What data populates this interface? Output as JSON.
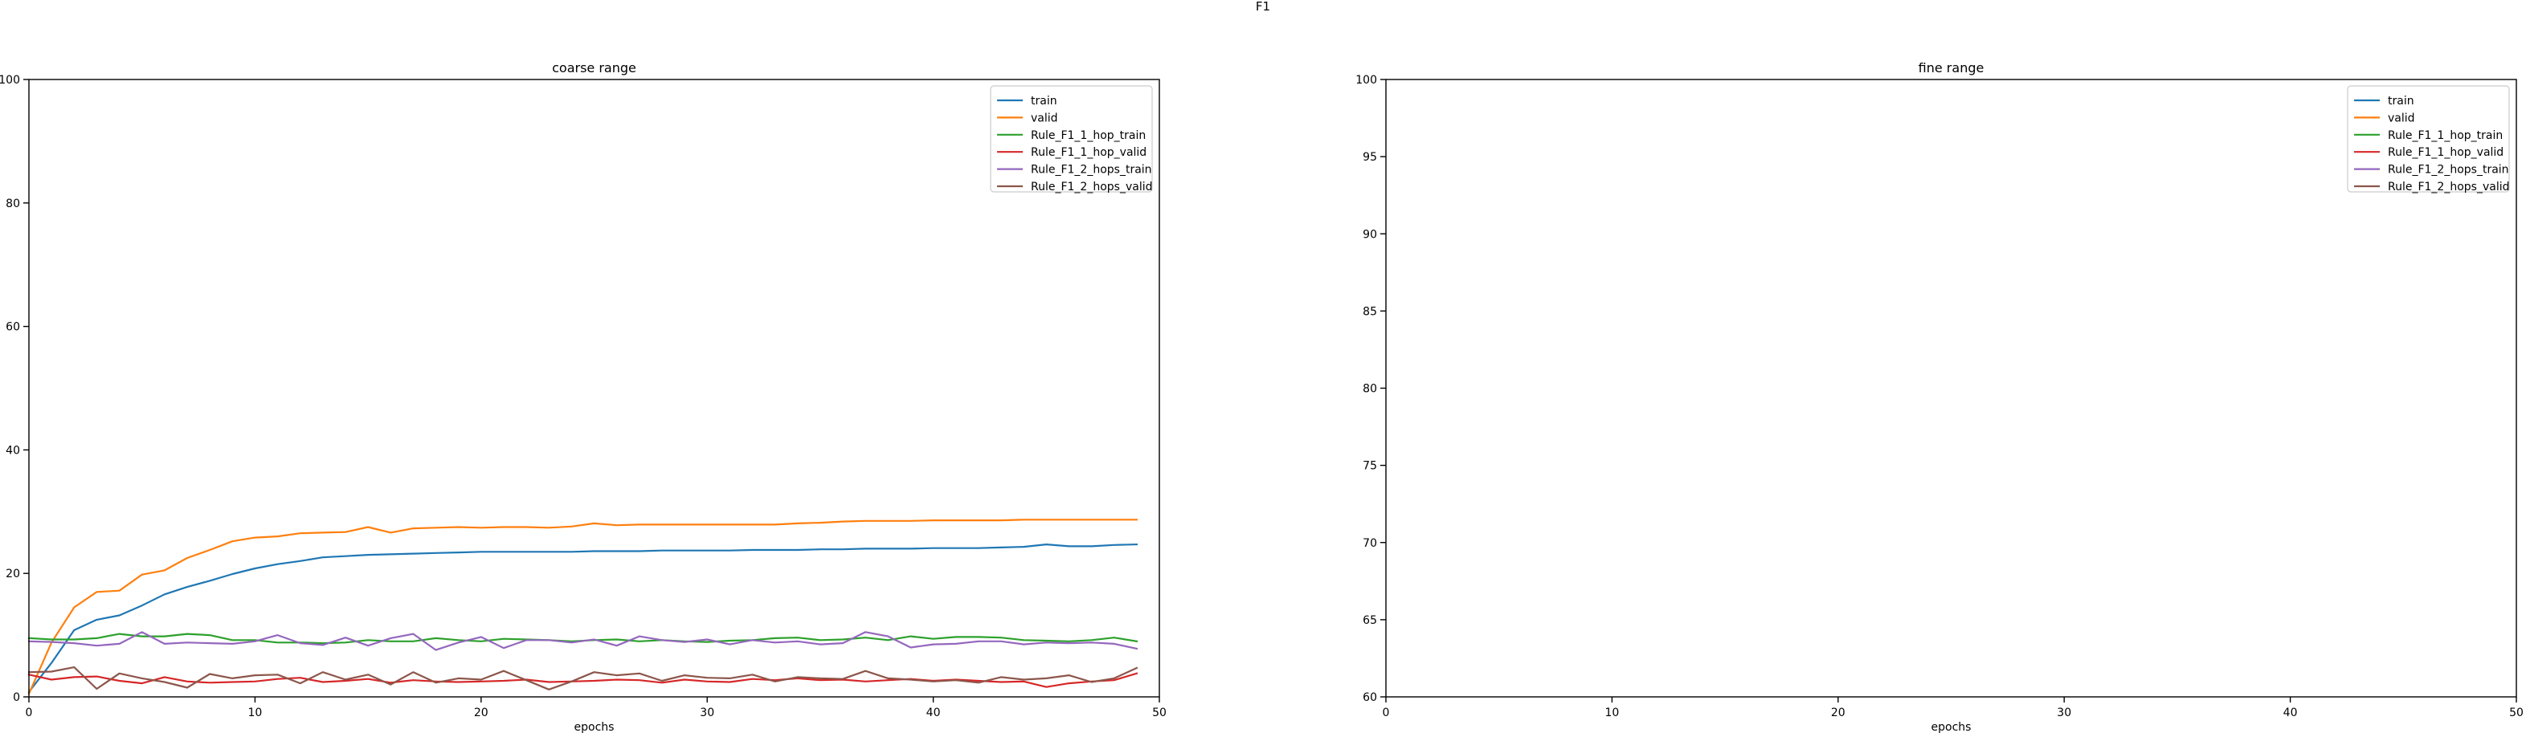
{
  "suptitle": "F1",
  "colors": {
    "train": "#1f77b4",
    "valid": "#ff7f0e",
    "Rule_F1_1_hop_train": "#2ca02c",
    "Rule_F1_1_hop_valid": "#d62728",
    "Rule_F1_2_hops_train": "#9467bd",
    "Rule_F1_2_hops_valid": "#8c564b"
  },
  "chart_data": [
    {
      "type": "line",
      "title": "coarse range",
      "xlabel": "epochs",
      "ylabel": "",
      "xlim": [
        0,
        50
      ],
      "ylim": [
        0,
        100
      ],
      "xticks": [
        0,
        10,
        20,
        30,
        40,
        50
      ],
      "yticks": [
        0,
        20,
        40,
        60,
        80,
        100
      ],
      "grid": false,
      "legend_position": "top-right",
      "x": [
        0,
        1,
        2,
        3,
        4,
        5,
        6,
        7,
        8,
        9,
        10,
        11,
        12,
        13,
        14,
        15,
        16,
        17,
        18,
        19,
        20,
        21,
        22,
        23,
        24,
        25,
        26,
        27,
        28,
        29,
        30,
        31,
        32,
        33,
        34,
        35,
        36,
        37,
        38,
        39,
        40,
        41,
        42,
        43,
        44,
        45,
        46,
        47,
        48,
        49
      ],
      "series": [
        {
          "name": "train",
          "values": [
            0.8,
            5.5,
            10.8,
            12.5,
            13.2,
            14.8,
            16.6,
            17.8,
            18.8,
            19.9,
            20.8,
            21.5,
            22.0,
            22.6,
            22.8,
            23.0,
            23.1,
            23.2,
            23.3,
            23.4,
            23.5,
            23.5,
            23.5,
            23.5,
            23.5,
            23.6,
            23.6,
            23.6,
            23.7,
            23.7,
            23.7,
            23.7,
            23.8,
            23.8,
            23.8,
            23.9,
            23.9,
            24.0,
            24.0,
            24.0,
            24.1,
            24.1,
            24.1,
            24.2,
            24.3,
            24.7,
            24.4,
            24.4,
            24.6,
            24.7
          ]
        },
        {
          "name": "valid",
          "values": [
            0.5,
            8.8,
            14.5,
            17.0,
            17.2,
            19.8,
            20.5,
            22.5,
            23.8,
            25.2,
            25.8,
            26.0,
            26.5,
            26.6,
            26.7,
            27.5,
            26.6,
            27.3,
            27.4,
            27.5,
            27.4,
            27.5,
            27.5,
            27.4,
            27.6,
            28.1,
            27.8,
            27.9,
            27.9,
            27.9,
            27.9,
            27.9,
            27.9,
            27.9,
            28.1,
            28.2,
            28.4,
            28.5,
            28.5,
            28.5,
            28.6,
            28.6,
            28.6,
            28.6,
            28.7,
            28.7,
            28.7,
            28.7,
            28.7,
            28.7
          ]
        },
        {
          "name": "Rule_F1_1_hop_train",
          "values": [
            9.5,
            9.3,
            9.3,
            9.5,
            10.2,
            9.8,
            9.8,
            10.2,
            10.0,
            9.2,
            9.2,
            8.8,
            8.8,
            8.7,
            8.8,
            9.2,
            9.0,
            9.0,
            9.5,
            9.2,
            9.0,
            9.4,
            9.3,
            9.2,
            9.0,
            9.2,
            9.3,
            9.0,
            9.2,
            9.0,
            8.9,
            9.1,
            9.2,
            9.5,
            9.6,
            9.2,
            9.3,
            9.6,
            9.2,
            9.8,
            9.4,
            9.7,
            9.7,
            9.6,
            9.2,
            9.1,
            9.0,
            9.2,
            9.6,
            9.0
          ]
        },
        {
          "name": "Rule_F1_1_hop_valid",
          "values": [
            3.6,
            2.8,
            3.2,
            3.3,
            2.6,
            2.2,
            3.2,
            2.5,
            2.3,
            2.4,
            2.5,
            2.9,
            3.1,
            2.4,
            2.6,
            2.9,
            2.3,
            2.7,
            2.5,
            2.4,
            2.5,
            2.6,
            2.8,
            2.4,
            2.5,
            2.6,
            2.8,
            2.7,
            2.3,
            2.8,
            2.5,
            2.4,
            2.9,
            2.7,
            3.0,
            2.7,
            2.8,
            2.5,
            2.7,
            2.9,
            2.6,
            2.8,
            2.6,
            2.4,
            2.5,
            1.6,
            2.2,
            2.5,
            2.7,
            3.8
          ]
        },
        {
          "name": "Rule_F1_2_hops_train",
          "values": [
            9.0,
            8.9,
            8.7,
            8.3,
            8.6,
            10.5,
            8.6,
            8.8,
            8.7,
            8.6,
            9.0,
            10.0,
            8.7,
            8.4,
            9.6,
            8.3,
            9.5,
            10.2,
            7.6,
            8.8,
            9.7,
            7.9,
            9.2,
            9.2,
            8.8,
            9.3,
            8.3,
            9.8,
            9.2,
            8.9,
            9.3,
            8.5,
            9.2,
            8.8,
            9.0,
            8.5,
            8.7,
            10.5,
            9.8,
            8.0,
            8.5,
            8.6,
            9.0,
            9.0,
            8.5,
            8.8,
            8.7,
            8.8,
            8.6,
            7.8
          ]
        },
        {
          "name": "Rule_F1_2_hops_valid",
          "values": [
            4.0,
            4.1,
            4.8,
            1.3,
            3.8,
            3.0,
            2.4,
            1.5,
            3.7,
            3.0,
            3.5,
            3.6,
            2.2,
            4.0,
            2.8,
            3.6,
            2.0,
            4.0,
            2.3,
            3.0,
            2.8,
            4.2,
            2.7,
            1.2,
            2.5,
            4.0,
            3.5,
            3.8,
            2.6,
            3.5,
            3.1,
            3.0,
            3.6,
            2.5,
            3.2,
            3.0,
            2.9,
            4.2,
            3.0,
            2.8,
            2.5,
            2.7,
            2.3,
            3.2,
            2.8,
            3.0,
            3.5,
            2.4,
            3.0,
            4.7
          ]
        }
      ]
    },
    {
      "type": "line",
      "title": "fine range",
      "xlabel": "epochs",
      "ylabel": "",
      "xlim": [
        0,
        50
      ],
      "ylim": [
        60,
        100
      ],
      "xticks": [
        0,
        10,
        20,
        30,
        40,
        50
      ],
      "yticks": [
        60,
        65,
        70,
        75,
        80,
        85,
        90,
        95,
        100
      ],
      "grid": false,
      "legend_position": "top-right",
      "series": [
        {
          "name": "train",
          "values": []
        },
        {
          "name": "valid",
          "values": []
        },
        {
          "name": "Rule_F1_1_hop_train",
          "values": []
        },
        {
          "name": "Rule_F1_1_hop_valid",
          "values": []
        },
        {
          "name": "Rule_F1_2_hops_train",
          "values": []
        },
        {
          "name": "Rule_F1_2_hops_valid",
          "values": []
        }
      ]
    }
  ]
}
